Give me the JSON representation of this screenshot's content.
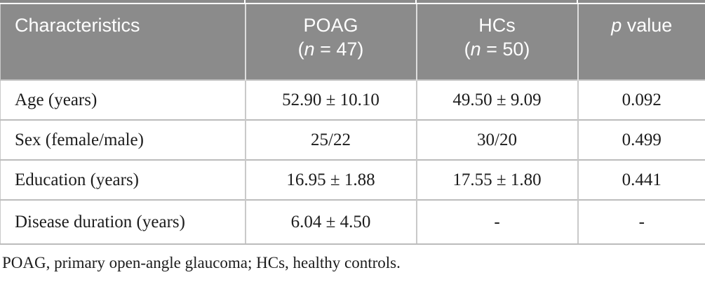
{
  "colors": {
    "header_bg": "#8b8b8b",
    "header_text": "#ffffff",
    "header_divider": "#dedede",
    "row_line": "#bcbcbc",
    "column_divider": "#c9c9c9",
    "body_text": "#1c1c1c",
    "page_bg": "#ffffff"
  },
  "table": {
    "header": {
      "characteristics": "Characteristics",
      "poag": {
        "title": "POAG",
        "open": "(",
        "n": "n",
        "rest": " = 47)"
      },
      "hcs": {
        "title": "HCs",
        "open": "(",
        "n": "n",
        "rest": " = 50)"
      },
      "pvalue": {
        "p": "p",
        "rest": " value"
      }
    },
    "rows": [
      {
        "characteristic": "Age (years)",
        "poag": "52.90 ± 10.10",
        "hcs": "49.50 ± 9.09",
        "p": "0.092"
      },
      {
        "characteristic": "Sex (female/male)",
        "poag": "25/22",
        "hcs": "30/20",
        "p": "0.499"
      },
      {
        "characteristic": "Education (years)",
        "poag": "16.95 ± 1.88",
        "hcs": "17.55 ± 1.80",
        "p": "0.441"
      },
      {
        "characteristic": "Disease duration (years)",
        "poag": "6.04 ± 4.50",
        "hcs": "-",
        "p": "-"
      }
    ],
    "footnote": "POAG, primary open-angle glaucoma; HCs, healthy controls."
  }
}
